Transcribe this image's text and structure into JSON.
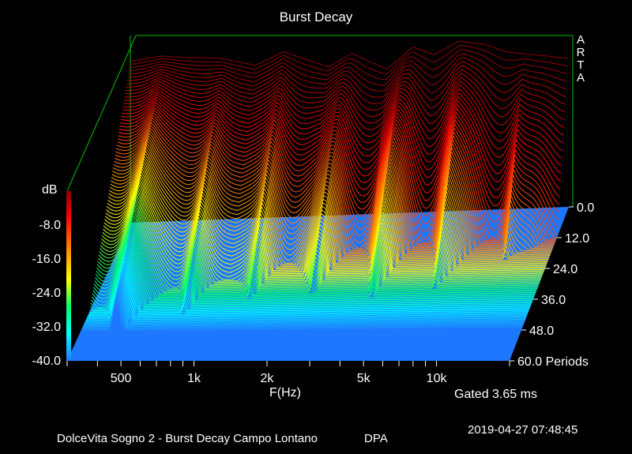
{
  "chart_data": {
    "type": "waterfall-3d",
    "title": "Burst Decay",
    "xlabel": "F(Hz)",
    "x_scale": "log",
    "x_ticks": [
      "500",
      "1k",
      "2k",
      "5k",
      "10k"
    ],
    "x_tick_values": [
      500,
      1000,
      2000,
      5000,
      10000
    ],
    "xlim": [
      300,
      20000
    ],
    "zlabel": "dB",
    "z_ticks": [
      "-8.0",
      "-16.0",
      "-24.0",
      "-32.0",
      "-40.0"
    ],
    "zlim": [
      -40,
      0
    ],
    "period_ticks": [
      "0.0",
      "12.0",
      "24.0",
      "36.0",
      "48.0",
      "60.0 Periods"
    ],
    "periods_range": [
      0,
      60
    ],
    "front_level_db_by_freq": [
      {
        "f": 300,
        "db": -2
      },
      {
        "f": 400,
        "db": -1
      },
      {
        "f": 500,
        "db": -1.5
      },
      {
        "f": 700,
        "db": -2
      },
      {
        "f": 1000,
        "db": -4
      },
      {
        "f": 1300,
        "db": -1
      },
      {
        "f": 2000,
        "db": -5
      },
      {
        "f": 2500,
        "db": -2
      },
      {
        "f": 3500,
        "db": -6
      },
      {
        "f": 4500,
        "db": -1
      },
      {
        "f": 5500,
        "db": -3
      },
      {
        "f": 7000,
        "db": 0
      },
      {
        "f": 9000,
        "db": -1
      },
      {
        "f": 11000,
        "db": -3
      },
      {
        "f": 15000,
        "db": -4
      },
      {
        "f": 20000,
        "db": -5
      }
    ],
    "colormap": [
      "#8b0000",
      "#ff0000",
      "#ff8c00",
      "#ffff00",
      "#00ff66",
      "#00ffff",
      "#1e78ff"
    ],
    "floor_color": "#1e78ff",
    "gate_label": "Gated 3.65 ms",
    "brand": "ARTA"
  },
  "footer": {
    "description": "DolceVita Sogno 2 - Burst Decay Campo Lontano",
    "mic": "DPA",
    "timestamp": "2019-04-27  07:48:45"
  }
}
